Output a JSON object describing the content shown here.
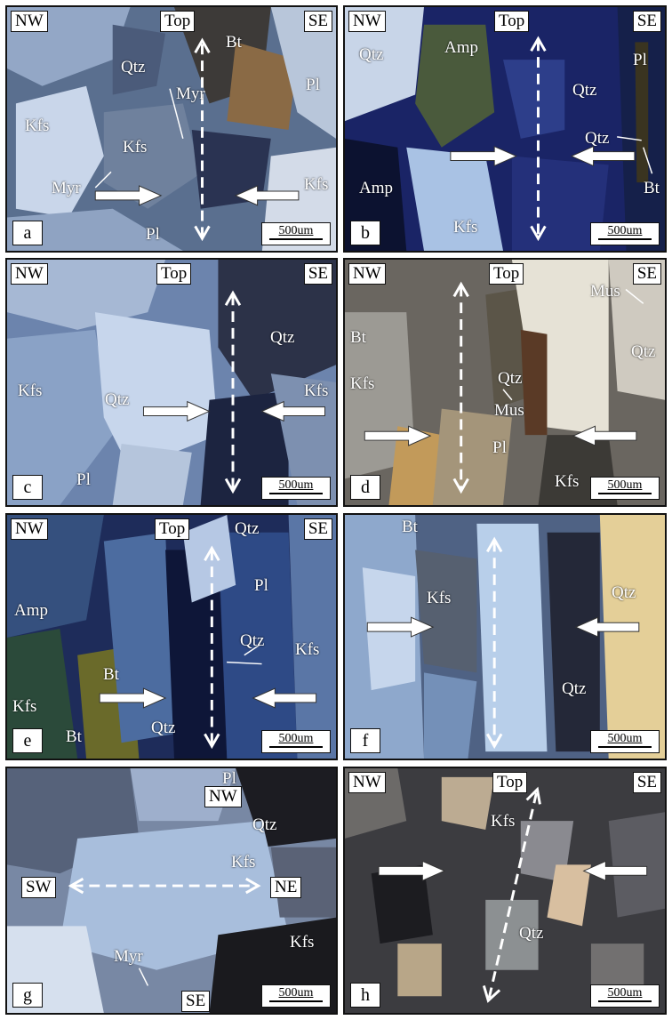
{
  "scale_text": "500um",
  "panels": {
    "a": {
      "letter": "a",
      "dirs": {
        "left": "NW",
        "center": "Top",
        "right": "SE"
      },
      "minerals": {
        "m1": "Bt",
        "m2": "Qtz",
        "m3": "Myr",
        "m4": "Pl",
        "m5": "Kfs",
        "m6": "Kfs",
        "m7": "Myr",
        "m8": "Kfs",
        "m9": "Pl"
      }
    },
    "b": {
      "letter": "b",
      "dirs": {
        "left": "NW",
        "center": "Top",
        "right": "SE"
      },
      "minerals": {
        "m1": "Amp",
        "m2": "Qtz",
        "m3": "Pl",
        "m4": "Qtz",
        "m5": "Qtz",
        "m6": "Bt",
        "m7": "Amp",
        "m8": "Kfs"
      }
    },
    "c": {
      "letter": "c",
      "dirs": {
        "left": "NW",
        "center": "Top",
        "right": "SE"
      },
      "minerals": {
        "m1": "Qtz",
        "m2": "Kfs",
        "m3": "Qtz",
        "m4": "Kfs",
        "m5": "Pl"
      }
    },
    "d": {
      "letter": "d",
      "dirs": {
        "left": "NW",
        "center": "Top",
        "right": "SE"
      },
      "minerals": {
        "m1": "Mus",
        "m2": "Bt",
        "m3": "Qtz",
        "m4": "Kfs",
        "m5": "Qtz",
        "m6": "Mus",
        "m7": "Pl",
        "m8": "Kfs"
      }
    },
    "e": {
      "letter": "e",
      "dirs": {
        "left": "NW",
        "center": "Top",
        "right": "SE"
      },
      "minerals": {
        "m1": "Qtz",
        "m2": "Pl",
        "m3": "Amp",
        "m4": "Qtz",
        "m5": "Kfs",
        "m6": "Bt",
        "m7": "Kfs",
        "m8": "Bt",
        "m9": "Qtz"
      }
    },
    "f": {
      "letter": "f",
      "minerals": {
        "m1": "Bt",
        "m2": "Kfs",
        "m3": "Qtz",
        "m4": "Qtz"
      }
    },
    "g": {
      "letter": "g",
      "dirs": {
        "top": "NW",
        "left": "SW",
        "right": "NE",
        "bottom": "SE"
      },
      "minerals": {
        "m1": "Pl",
        "m2": "Qtz",
        "m3": "Kfs",
        "m4": "Kfs",
        "m5": "Myr"
      }
    },
    "h": {
      "letter": "h",
      "dirs": {
        "left": "NW",
        "center": "Top",
        "right": "SE"
      },
      "minerals": {
        "m1": "Kfs",
        "m2": "Qtz"
      }
    }
  }
}
